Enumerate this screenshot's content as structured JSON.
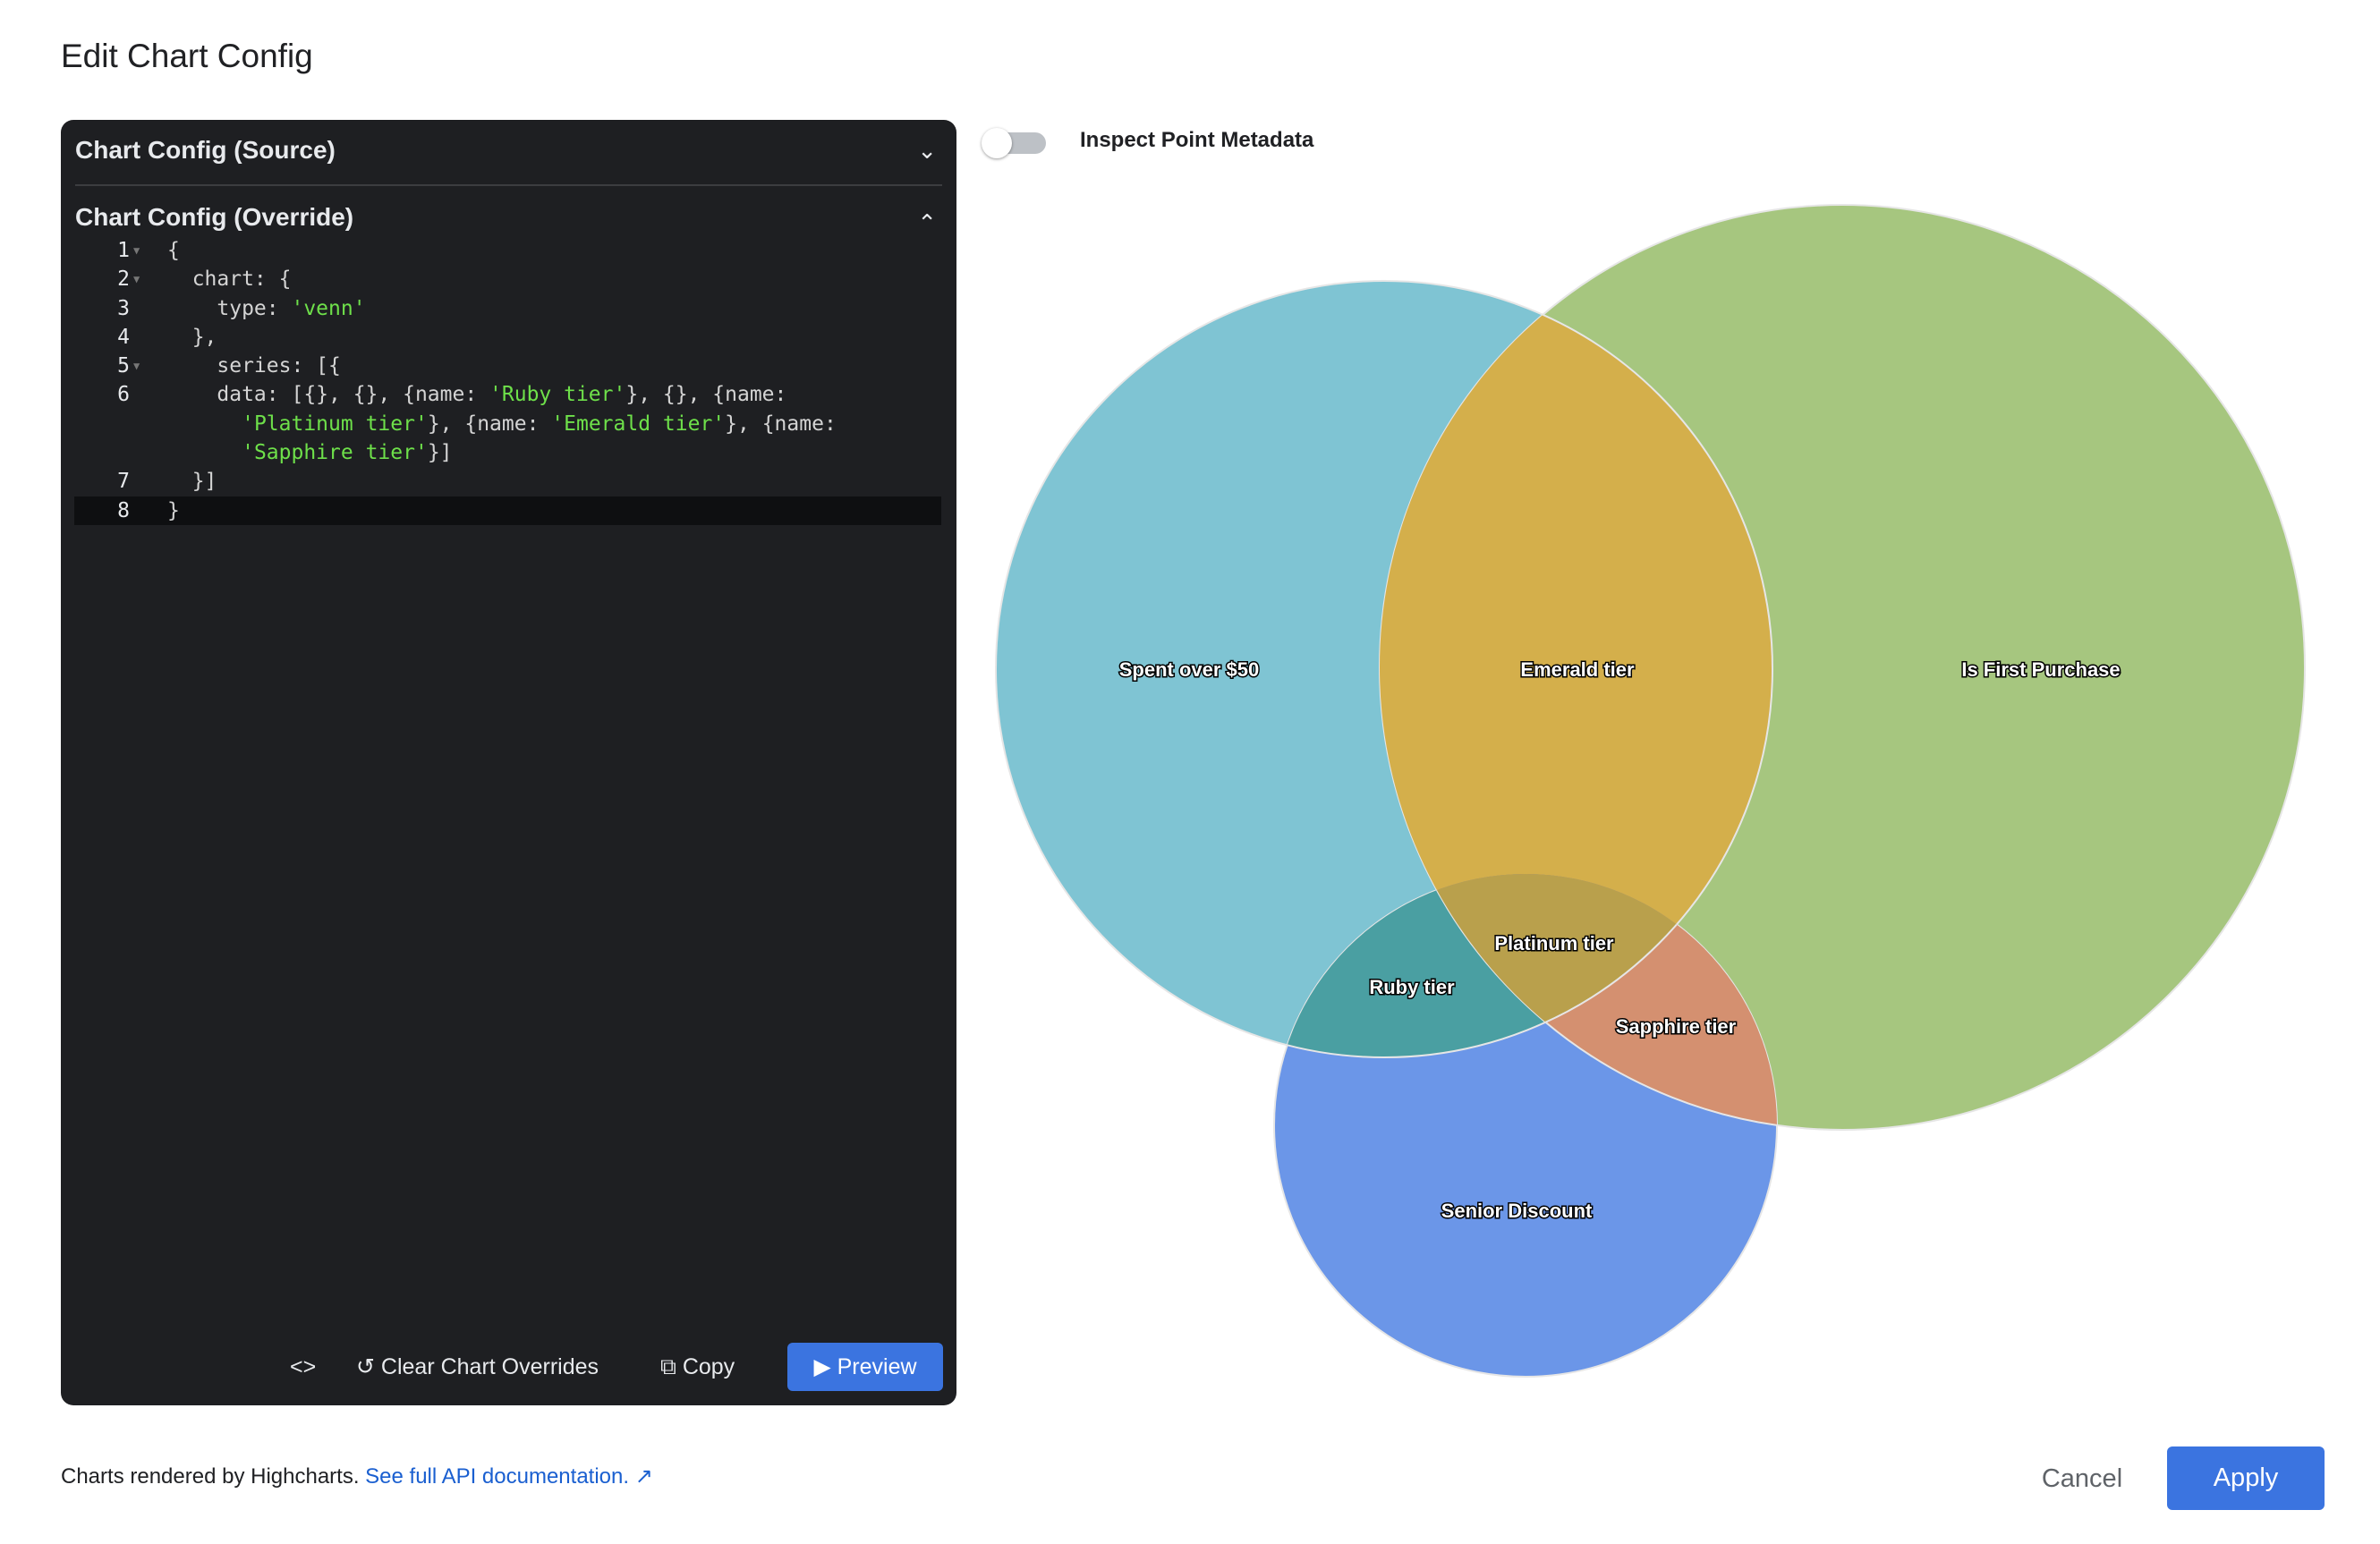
{
  "dialog": {
    "title": "Edit Chart Config"
  },
  "editor": {
    "source_header": "Chart Config (Source)",
    "override_header": "Chart Config (Override)",
    "lines": [
      {
        "num": "1",
        "parts": [
          {
            "t": "{"
          }
        ]
      },
      {
        "num": "2",
        "parts": [
          {
            "t": "  chart: {"
          }
        ]
      },
      {
        "num": "3",
        "parts": [
          {
            "t": "    type: "
          },
          {
            "t": "'venn'",
            "s": 1
          }
        ]
      },
      {
        "num": "4",
        "parts": [
          {
            "t": "  },"
          }
        ]
      },
      {
        "num": "5",
        "parts": [
          {
            "t": "    series: [{"
          }
        ]
      },
      {
        "num": "6",
        "parts": [
          {
            "t": "    data: [{}, {}, {name: "
          },
          {
            "t": "'Ruby tier'",
            "s": 1
          },
          {
            "t": "}, {}, {name:"
          }
        ]
      },
      {
        "num": "",
        "parts": [
          {
            "t": "      "
          },
          {
            "t": "'Platinum tier'",
            "s": 1
          },
          {
            "t": "}, {name: "
          },
          {
            "t": "'Emerald tier'",
            "s": 1
          },
          {
            "t": "}, {name:"
          }
        ]
      },
      {
        "num": "",
        "parts": [
          {
            "t": "      "
          },
          {
            "t": "'Sapphire tier'",
            "s": 1
          },
          {
            "t": "}]"
          }
        ]
      },
      {
        "num": "7",
        "parts": [
          {
            "t": "  }]"
          }
        ]
      },
      {
        "num": "8",
        "parts": [
          {
            "t": "}"
          }
        ]
      }
    ],
    "toolbar": {
      "code_icon": "<>",
      "clear_label": "Clear Chart Overrides",
      "copy_label": "Copy",
      "preview_label": "Preview"
    }
  },
  "toggle": {
    "label": "Inspect Point Metadata",
    "on": false
  },
  "chart_data": {
    "type": "venn",
    "sets": [
      {
        "name": "Spent over $50",
        "sets": [
          "A"
        ],
        "color": "#7fc4d3"
      },
      {
        "name": "Is First Purchase",
        "sets": [
          "B"
        ],
        "color": "#a6c67f"
      },
      {
        "name": "Senior Discount",
        "sets": [
          "C"
        ],
        "color": "#6b96e8"
      },
      {
        "name": "Emerald tier",
        "sets": [
          "A",
          "B"
        ],
        "color": "#d4af4b"
      },
      {
        "name": "Ruby tier",
        "sets": [
          "A",
          "C"
        ],
        "color": "#4a9fa2"
      },
      {
        "name": "Sapphire tier",
        "sets": [
          "B",
          "C"
        ],
        "color": "#d49070"
      },
      {
        "name": "Platinum tier",
        "sets": [
          "A",
          "B",
          "C"
        ],
        "color": "#b9a04c"
      }
    ]
  },
  "footer": {
    "text": "Charts rendered by Highcharts. ",
    "link": "See full API documentation.",
    "cancel": "Cancel",
    "apply": "Apply"
  }
}
